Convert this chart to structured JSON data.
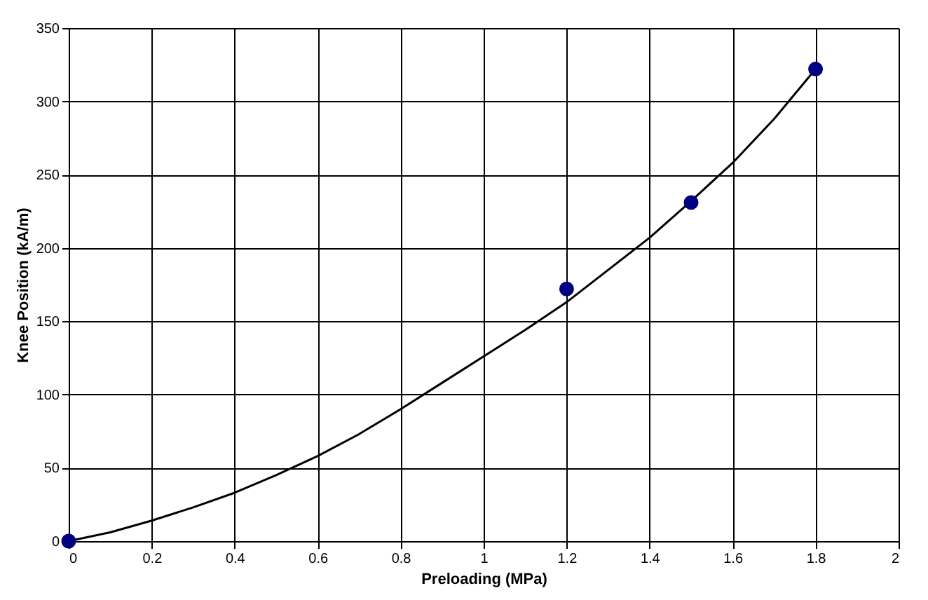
{
  "chart_data": {
    "type": "scatter",
    "xlabel": "Preloading (MPa)",
    "ylabel": "Knee Position (kA/m)",
    "xlim": [
      0,
      2
    ],
    "xticks": [
      0,
      0.2,
      0.4,
      0.6,
      0.8,
      1,
      1.2,
      1.4,
      1.6,
      1.8,
      2
    ],
    "ylim": [
      0,
      350
    ],
    "yticks": [
      0,
      50,
      100,
      150,
      200,
      250,
      300,
      350
    ],
    "grid": true,
    "series": [
      {
        "type": "line",
        "color": "#000000",
        "marker": "none",
        "line_style": "solid",
        "x": [
          0,
          0.1,
          0.2,
          0.3,
          0.4,
          0.5,
          0.6,
          0.7,
          0.8,
          0.9,
          1.0,
          1.1,
          1.2,
          1.3,
          1.4,
          1.5,
          1.6,
          1.7,
          1.8
        ],
        "values": [
          0,
          6,
          14,
          23,
          33,
          45,
          58,
          73,
          90,
          108,
          126,
          144,
          163,
          185,
          207,
          232,
          258,
          288,
          322
        ]
      },
      {
        "color": "#000080",
        "marker": "circle",
        "x": [
          0,
          1.2,
          1.5,
          1.8
        ],
        "values": [
          0,
          172,
          231,
          322
        ]
      }
    ]
  }
}
